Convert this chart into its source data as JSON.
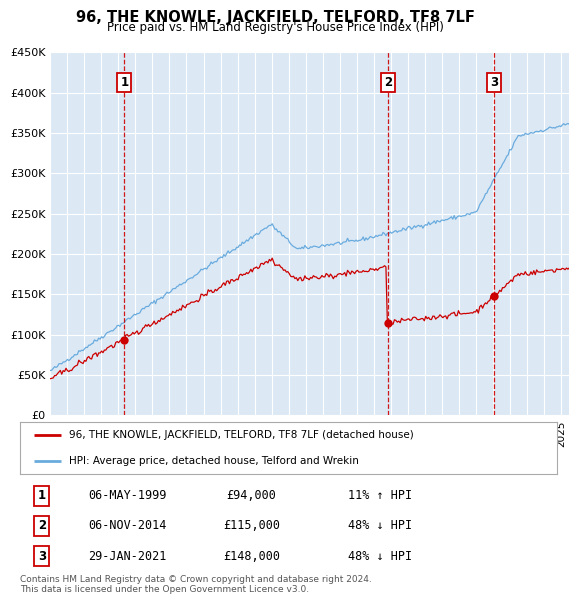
{
  "title": "96, THE KNOWLE, JACKFIELD, TELFORD, TF8 7LF",
  "subtitle": "Price paid vs. HM Land Registry's House Price Index (HPI)",
  "ylim": [
    0,
    450000
  ],
  "yticks": [
    0,
    50000,
    100000,
    150000,
    200000,
    250000,
    300000,
    350000,
    400000,
    450000
  ],
  "ytick_labels": [
    "£0",
    "£50K",
    "£100K",
    "£150K",
    "£200K",
    "£250K",
    "£300K",
    "£350K",
    "£400K",
    "£450K"
  ],
  "xlim_start": 1995.0,
  "xlim_end": 2025.5,
  "background_color": "#ffffff",
  "plot_bg_color": "#dce9f5",
  "grid_color": "#ffffff",
  "sale_dates_year": [
    1999.35,
    2014.84,
    2021.08
  ],
  "sale_prices": [
    94000,
    115000,
    148000
  ],
  "sale_labels": [
    "1",
    "2",
    "3"
  ],
  "sale_date_strings": [
    "06-MAY-1999",
    "06-NOV-2014",
    "29-JAN-2021"
  ],
  "sale_price_strings": [
    "£94,000",
    "£115,000",
    "£148,000"
  ],
  "sale_hpi_strings": [
    "11% ↑ HPI",
    "48% ↓ HPI",
    "48% ↓ HPI"
  ],
  "red_line_color": "#cc0000",
  "blue_line_color": "#6aabde",
  "dashed_line_color": "#cc0000",
  "legend_label_red": "96, THE KNOWLE, JACKFIELD, TELFORD, TF8 7LF (detached house)",
  "legend_label_blue": "HPI: Average price, detached house, Telford and Wrekin",
  "footer_text": "Contains HM Land Registry data © Crown copyright and database right 2024.\nThis data is licensed under the Open Government Licence v3.0.",
  "num_months": 367,
  "hpi_start_year": 1995.0,
  "hpi_month_step": 0.08333
}
